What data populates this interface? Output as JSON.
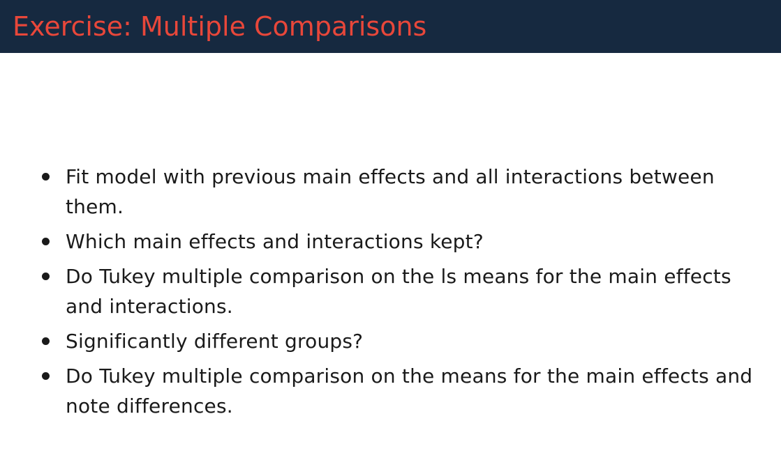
{
  "slide": {
    "title": "Exercise: Multiple Comparisons",
    "colors": {
      "header_background": "#162940",
      "title_text": "#e8473a",
      "body_text": "#1a1a1a",
      "background": "#ffffff"
    },
    "bullets": [
      "Fit model with previous main effects and all interactions between them.",
      "Which main effects and interactions kept?",
      "Do Tukey multiple comparison on the ls means for the main effects and interactions.",
      "Significantly different groups?",
      "Do Tukey multiple comparison on the means for the main effects and note differences."
    ]
  }
}
